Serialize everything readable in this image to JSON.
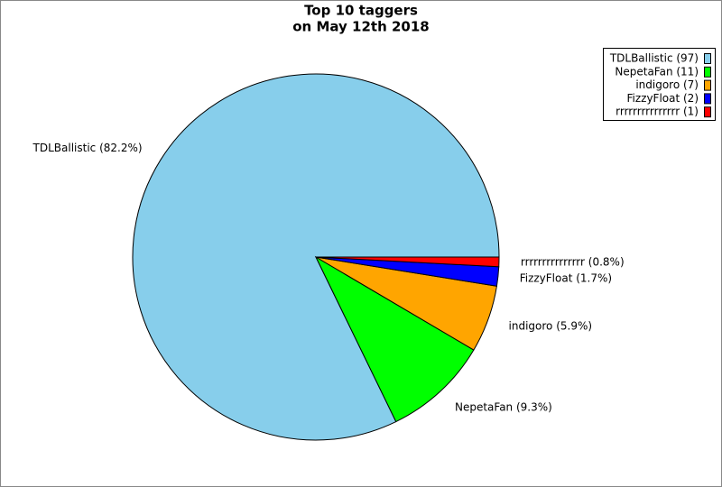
{
  "chart_data": {
    "type": "pie",
    "title": [
      "Top 10 taggers",
      "on May 12th 2018"
    ],
    "values": [
      97,
      11,
      7,
      2,
      1
    ],
    "colors": [
      "#87ceeb",
      "#00ff00",
      "#ffa500",
      "#0000ff",
      "#ff0000"
    ],
    "slice_labels": [
      "TDLBallistic (82.2%)",
      "NepetaFan (9.3%)",
      "indigoro (5.9%)",
      "FizzyFloat (1.7%)",
      "rrrrrrrrrrrrrrr (0.8%)"
    ],
    "legend_labels": [
      "TDLBallistic (97)",
      "NepetaFan (11)",
      "indigoro (7)",
      "FizzyFloat (2)",
      "rrrrrrrrrrrrrrr (1)"
    ],
    "legend": "top-right"
  }
}
